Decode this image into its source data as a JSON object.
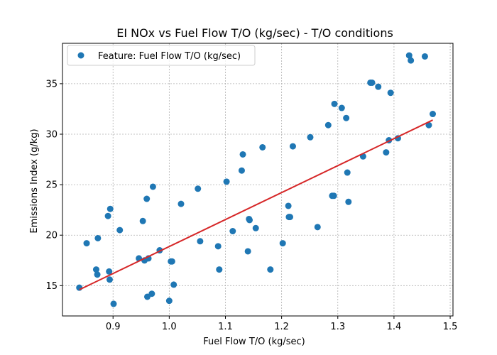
{
  "chart_data": {
    "type": "scatter",
    "title": "EI NOx vs Fuel Flow T/O (kg/sec) - T/O conditions",
    "xlabel": "Fuel Flow T/O (kg/sec)",
    "ylabel": "Emissions Index (g/kg)",
    "xlim": [
      0.81,
      1.505
    ],
    "ylim": [
      12.0,
      39.0
    ],
    "xticks": [
      "0.9",
      "1.0",
      "1.1",
      "1.2",
      "1.3",
      "1.4",
      "1.5"
    ],
    "yticks": [
      "15",
      "20",
      "25",
      "30",
      "35"
    ],
    "grid": true,
    "legend_position": "top-left",
    "series": [
      {
        "name": "Feature: Fuel Flow T/O (kg/sec)",
        "color": "#1f77b4",
        "points": [
          [
            0.84,
            14.8
          ],
          [
            0.853,
            19.2
          ],
          [
            0.87,
            16.6
          ],
          [
            0.872,
            16.1
          ],
          [
            0.873,
            19.7
          ],
          [
            0.891,
            21.9
          ],
          [
            0.893,
            16.4
          ],
          [
            0.894,
            15.6
          ],
          [
            0.895,
            22.6
          ],
          [
            0.901,
            13.2
          ],
          [
            0.912,
            20.5
          ],
          [
            0.946,
            17.7
          ],
          [
            0.953,
            21.4
          ],
          [
            0.956,
            17.5
          ],
          [
            0.96,
            23.6
          ],
          [
            0.961,
            13.9
          ],
          [
            0.963,
            17.7
          ],
          [
            0.969,
            14.2
          ],
          [
            0.971,
            24.8
          ],
          [
            0.983,
            18.5
          ],
          [
            1.0,
            13.5
          ],
          [
            1.003,
            17.4
          ],
          [
            1.005,
            17.4
          ],
          [
            1.008,
            15.1
          ],
          [
            1.021,
            23.1
          ],
          [
            1.051,
            24.6
          ],
          [
            1.055,
            19.4
          ],
          [
            1.087,
            18.9
          ],
          [
            1.089,
            16.6
          ],
          [
            1.102,
            25.3
          ],
          [
            1.113,
            20.4
          ],
          [
            1.129,
            26.4
          ],
          [
            1.131,
            28.0
          ],
          [
            1.14,
            18.4
          ],
          [
            1.142,
            21.6
          ],
          [
            1.143,
            21.5
          ],
          [
            1.154,
            20.7
          ],
          [
            1.166,
            28.7
          ],
          [
            1.18,
            16.6
          ],
          [
            1.202,
            19.2
          ],
          [
            1.212,
            22.9
          ],
          [
            1.213,
            21.8
          ],
          [
            1.215,
            21.8
          ],
          [
            1.22,
            28.8
          ],
          [
            1.251,
            29.7
          ],
          [
            1.264,
            20.8
          ],
          [
            1.283,
            30.9
          ],
          [
            1.29,
            23.9
          ],
          [
            1.293,
            23.9
          ],
          [
            1.294,
            33.0
          ],
          [
            1.307,
            32.6
          ],
          [
            1.315,
            31.6
          ],
          [
            1.317,
            26.2
          ],
          [
            1.319,
            23.3
          ],
          [
            1.345,
            27.8
          ],
          [
            1.358,
            35.1
          ],
          [
            1.361,
            35.1
          ],
          [
            1.372,
            34.7
          ],
          [
            1.386,
            28.2
          ],
          [
            1.391,
            29.4
          ],
          [
            1.394,
            34.1
          ],
          [
            1.407,
            29.6
          ],
          [
            1.427,
            37.8
          ],
          [
            1.43,
            37.3
          ],
          [
            1.455,
            37.7
          ],
          [
            1.462,
            30.9
          ],
          [
            1.469,
            32.0
          ]
        ]
      }
    ],
    "trendline": {
      "color": "#d62728",
      "x": [
        0.84,
        1.469
      ],
      "y": [
        14.6,
        31.4
      ]
    }
  }
}
